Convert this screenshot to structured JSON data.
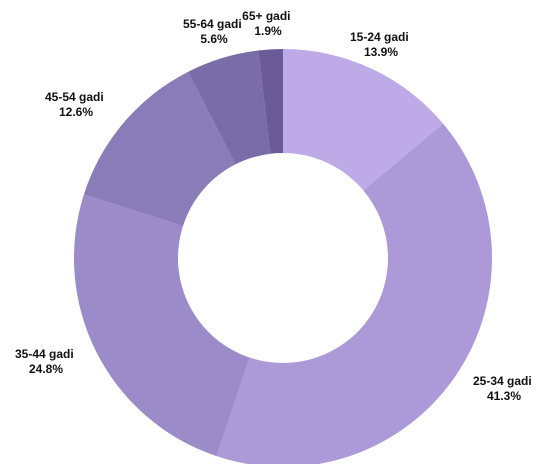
{
  "chart_data": {
    "type": "pie",
    "donut": true,
    "title": "",
    "legend": "none",
    "categories": [
      "15-24 gadi",
      "25-34 gadi",
      "35-44 gadi",
      "45-54 gadi",
      "55-64 gadi",
      "65+ gadi"
    ],
    "values": [
      13.9,
      41.3,
      24.8,
      12.6,
      5.6,
      1.9
    ],
    "value_labels": [
      "13.9%",
      "41.3%",
      "24.8%",
      "12.6%",
      "5.6%",
      "1.9%"
    ],
    "colors": [
      "#beaae7",
      "#ab99d8",
      "#9b8bc9",
      "#8a7bb9",
      "#7a6ba9",
      "#6a5b98"
    ]
  }
}
